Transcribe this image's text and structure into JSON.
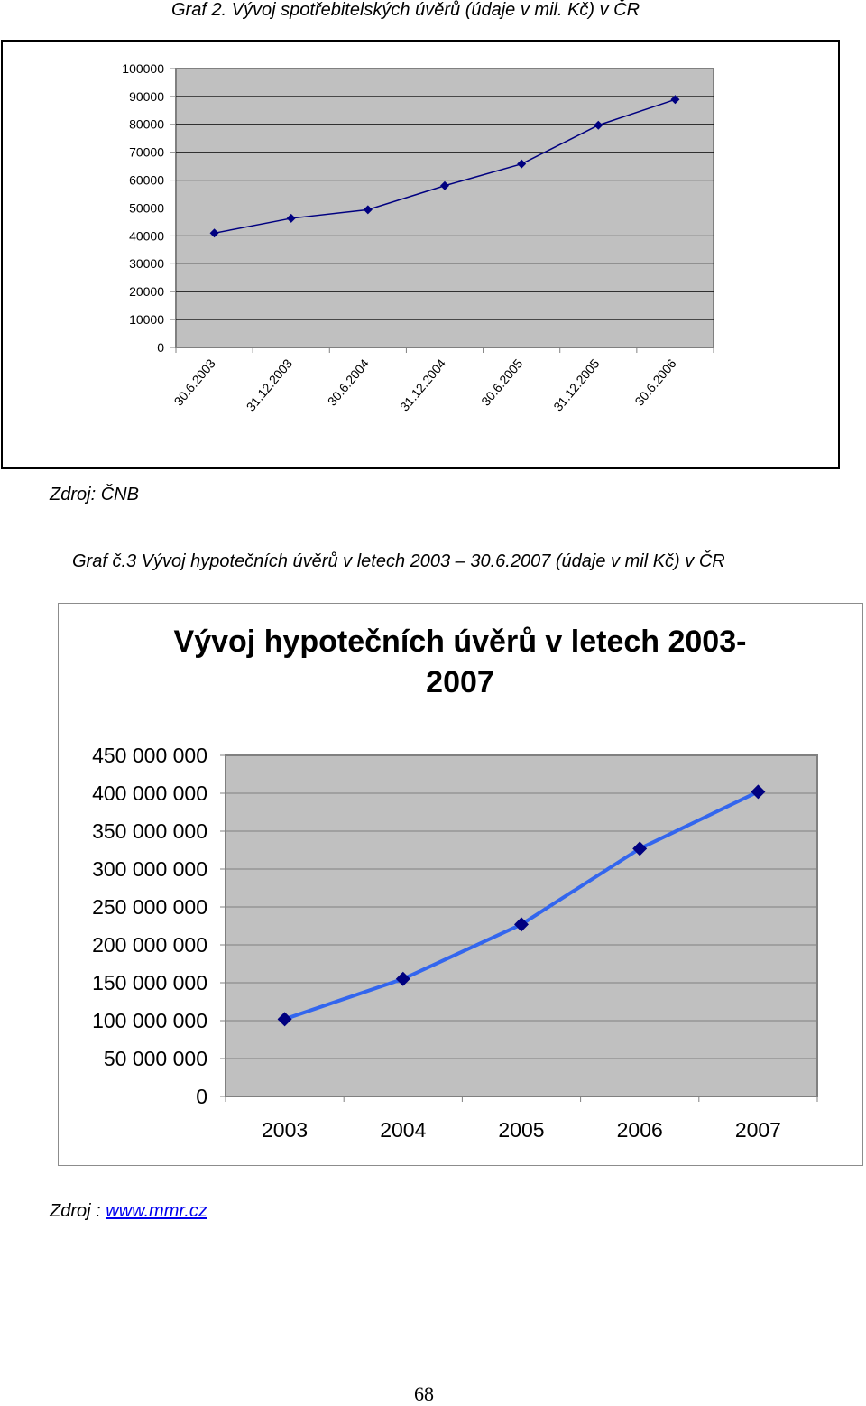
{
  "captions": {
    "graf2": "Graf 2. Vývoj spotřebitelských úvěrů (údaje v mil. Kč) v ČR",
    "graf3": "Graf č.3 Vývoj hypotečních úvěrů v letech 2003 – 30.6.2007 (údaje v mil Kč) v ČR"
  },
  "sources": {
    "source1_label": "Zdroj:",
    "source1_value": "ČNB",
    "source2_label": "Zdroj :",
    "source2_link": "www.mmr.cz"
  },
  "page_number": "68",
  "chart_data": [
    {
      "type": "line",
      "title": "",
      "xlabel": "",
      "ylabel": "",
      "categories": [
        "30.6.2003",
        "31.12.2003",
        "30.6.2004",
        "31.12.2004",
        "30.6.2005",
        "31.12.2005",
        "30.6.2006"
      ],
      "series": [
        {
          "values": [
            41000,
            46300,
            49400,
            58000,
            65800,
            79700,
            88900
          ]
        }
      ],
      "y_ticks": [
        "0",
        "10000",
        "20000",
        "30000",
        "40000",
        "50000",
        "60000",
        "70000",
        "80000",
        "90000",
        "100000"
      ],
      "ylim": [
        0,
        100000
      ],
      "grid": true,
      "legend": "none",
      "colors": {
        "plot_bg": "#c0c0c0",
        "line": "#000080",
        "marker": "#000080",
        "grid": "#000000"
      }
    },
    {
      "type": "line",
      "title": "Vývoj hypotečních úvěrů v letech 2003-2007",
      "title_lines": [
        "Vývoj hypotečních úvěrů v letech 2003-",
        "2007"
      ],
      "xlabel": "",
      "ylabel": "",
      "categories": [
        "2003",
        "2004",
        "2005",
        "2006",
        "2007"
      ],
      "series": [
        {
          "values": [
            102000000,
            155000000,
            227000000,
            327000000,
            402000000
          ]
        }
      ],
      "y_ticks": [
        "0",
        "50 000 000",
        "100 000 000",
        "150 000 000",
        "200 000 000",
        "250 000 000",
        "300 000 000",
        "350 000 000",
        "400 000 000",
        "450 000 000"
      ],
      "ylim": [
        0,
        450000000
      ],
      "grid": true,
      "legend": "none",
      "colors": {
        "plot_bg": "#c0c0c0",
        "line": "#3366ee",
        "marker": "#000080",
        "grid": "#808080"
      }
    }
  ]
}
